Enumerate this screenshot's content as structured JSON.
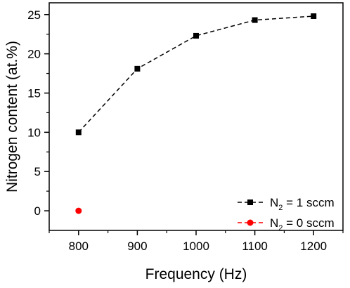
{
  "chart_data": {
    "type": "line",
    "xlabel": "Frequency (Hz)",
    "ylabel": "Nitrogen content (at.%)",
    "xlim": [
      750,
      1250
    ],
    "ylim": [
      -2.5,
      26.5
    ],
    "x_ticks": [
      800,
      900,
      1000,
      1100,
      1200
    ],
    "y_ticks": [
      0,
      5,
      10,
      15,
      20,
      25
    ],
    "grid": false,
    "legend_position": "bottom-right",
    "series": [
      {
        "name_main": "N",
        "name_sub": "2",
        "name_rest": " = 1 sccm",
        "color": "#000000",
        "marker": "square",
        "line": "dashed",
        "x": [
          800,
          900,
          1000,
          1100,
          1200
        ],
        "y": [
          10.0,
          18.1,
          22.3,
          24.3,
          24.8
        ]
      },
      {
        "name_main": "N",
        "name_sub": "2",
        "name_rest": " = 0 sccm",
        "color": "#ff0000",
        "marker": "circle",
        "line": "dashed",
        "x": [
          800
        ],
        "y": [
          0.0
        ]
      }
    ]
  }
}
